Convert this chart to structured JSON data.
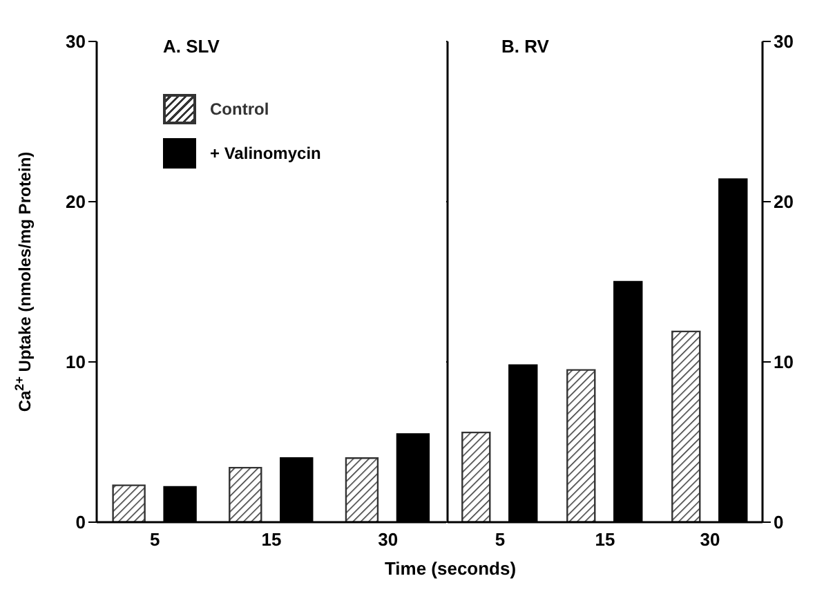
{
  "chart_data": [
    {
      "type": "bar",
      "title": "A. SLV",
      "xlabel": "Time (seconds)",
      "ylabel": "Ca$^{2+}$ Uptake (nmoles/mg Protein)",
      "categories": [
        "5",
        "15",
        "30"
      ],
      "series": [
        {
          "name": "Control",
          "color": "#333333",
          "values": [
            2.3,
            3.4,
            4.0
          ]
        },
        {
          "name": "+ Valinomycin",
          "color": "#000000",
          "values": [
            2.2,
            4.0,
            5.5
          ]
        }
      ],
      "ylim": [
        0,
        30
      ],
      "yticks": [
        0,
        10,
        20,
        30
      ],
      "grid": false,
      "legend": "top left"
    },
    {
      "type": "bar",
      "title": "B. RV",
      "categories": [
        "5",
        "15",
        "30"
      ],
      "series": [
        {
          "color": "#333333",
          "values": [
            5.6,
            9.5,
            11.9
          ]
        },
        {
          "color": "#000000",
          "values": [
            9.8,
            15.0,
            21.4
          ]
        }
      ],
      "ylim": [
        0,
        30
      ],
      "yticks": [
        0,
        10,
        20,
        30
      ],
      "grid": false
    }
  ]
}
